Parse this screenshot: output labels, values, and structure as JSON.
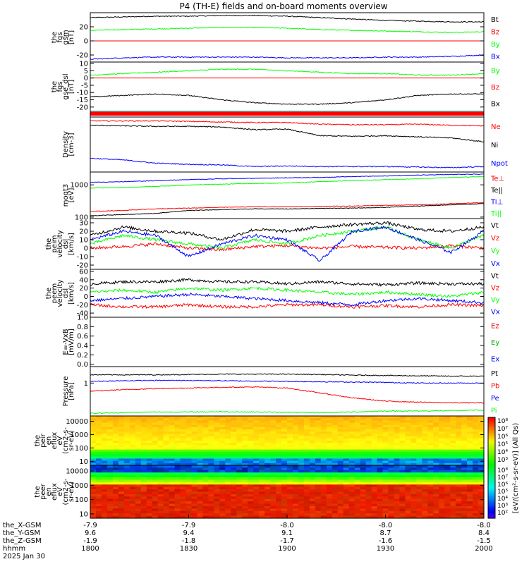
{
  "title": "P4 (TH-E) fields and on-board moments overview",
  "chart_data": [
    {
      "type": "line",
      "ylabel": [
        "the",
        "fgs",
        "gsm",
        "[nT]"
      ],
      "yticks": [
        "20",
        "0",
        "-20"
      ],
      "ylim": [
        -30,
        40
      ],
      "legend": [
        "Bt",
        "Bz",
        "By",
        "Bx"
      ],
      "series": [
        {
          "name": "Bt",
          "color": "#000000",
          "values": [
            33,
            34,
            35,
            35,
            36,
            36,
            35,
            33,
            31,
            29,
            28,
            27,
            27
          ]
        },
        {
          "name": "Bz",
          "color": "#ff0000",
          "values": [
            0,
            0,
            0,
            0,
            0,
            0,
            0,
            0,
            0,
            0,
            0,
            0,
            0
          ]
        },
        {
          "name": "By",
          "color": "#00ff00",
          "values": [
            15,
            16,
            17,
            18,
            19,
            19,
            18,
            16,
            15,
            14,
            13,
            12,
            13
          ]
        },
        {
          "name": "Bx",
          "color": "#0000ff",
          "values": [
            -26,
            -24,
            -23,
            -23,
            -23,
            -23,
            -24,
            -24,
            -24,
            -23,
            -23,
            -22,
            -20
          ]
        }
      ]
    },
    {
      "type": "line",
      "ylabel": [
        "the",
        "fgs",
        "gse_dsl",
        "[nT]"
      ],
      "yticks": [
        "10",
        "5",
        "0",
        "-5",
        "-10",
        "-15",
        "-20"
      ],
      "ylim": [
        -23,
        11
      ],
      "legend": [
        "By",
        "Bz",
        "Bx"
      ],
      "series": [
        {
          "name": "By",
          "color": "#00ff00",
          "values": [
            2,
            3,
            4,
            5,
            6,
            6,
            5,
            4,
            3,
            3,
            2,
            2,
            3
          ]
        },
        {
          "name": "Bz",
          "color": "#ff0000",
          "values": [
            0,
            0,
            0,
            0,
            0,
            0,
            0,
            0,
            0,
            0,
            0,
            0,
            0
          ]
        },
        {
          "name": "Bx",
          "color": "#000000",
          "values": [
            -13,
            -12,
            -11,
            -12,
            -15,
            -17,
            -18,
            -18,
            -17,
            -15,
            -12,
            -11,
            -11
          ]
        }
      ]
    },
    {
      "type": "line",
      "ylabel": [
        "Density",
        "[cm-3]"
      ],
      "yticks": [],
      "ylim": [
        0,
        10
      ],
      "legend": [
        "Ne",
        "Ni",
        "Npot"
      ],
      "series": [
        {
          "name": "Ne",
          "color": "#ff0000",
          "values": [
            9.3,
            9.3,
            9.3,
            9.2,
            9.1,
            9.0,
            9.0,
            8.7,
            8.6,
            8.6,
            8.7,
            8.5,
            8.4
          ]
        },
        {
          "name": "Ni",
          "color": "#000000",
          "values": [
            8.5,
            8.4,
            8.3,
            8.3,
            8.2,
            7.7,
            7.8,
            6.6,
            6.5,
            6.6,
            6.4,
            6.2,
            5.5
          ]
        },
        {
          "name": "Npot",
          "color": "#0000ff",
          "values": [
            2.5,
            2.2,
            1.6,
            1.4,
            1.3,
            1.0,
            1.1,
            1.0,
            1.0,
            1.0,
            0.9,
            0.8,
            1.0
          ]
        }
      ]
    },
    {
      "type": "line",
      "ylabel": [
        "moqt3",
        "[eV]"
      ],
      "yticks": [
        "1000",
        "100"
      ],
      "ylim": [
        90,
        2500
      ],
      "yscale": "log",
      "legend": [
        "Te⊥",
        "Te||",
        "Ti⊥",
        "Ti||"
      ],
      "series": [
        {
          "name": "Te⊥",
          "color": "#ff0000",
          "values": [
            150,
            160,
            180,
            190,
            200,
            210,
            210,
            215,
            220,
            230,
            240,
            260,
            280
          ]
        },
        {
          "name": "Te||",
          "color": "#000000",
          "values": [
            110,
            120,
            130,
            160,
            170,
            180,
            180,
            185,
            190,
            200,
            220,
            240,
            260
          ]
        },
        {
          "name": "Ti⊥",
          "color": "#0000ff",
          "values": [
            1200,
            1250,
            1350,
            1450,
            1550,
            1600,
            1650,
            1700,
            1800,
            1900,
            2000,
            2100,
            2150
          ]
        },
        {
          "name": "Ti||",
          "color": "#00ff00",
          "values": [
            800,
            820,
            900,
            980,
            1050,
            1100,
            1150,
            1250,
            1350,
            1450,
            1550,
            1700,
            1800
          ]
        }
      ]
    },
    {
      "type": "line",
      "ylabel": [
        "the",
        "peim",
        "velocity",
        "dsl",
        "[km/s]"
      ],
      "yticks": [
        "30",
        "20",
        "10",
        "0",
        "-10",
        "-20"
      ],
      "ylim": [
        -25,
        35
      ],
      "legend": [
        "Vt",
        "Vz",
        "Vy",
        "Vx"
      ],
      "series": [
        {
          "name": "Vt",
          "color": "#000000",
          "values": [
            15,
            25,
            20,
            18,
            10,
            22,
            20,
            25,
            28,
            30,
            22,
            20,
            25
          ]
        },
        {
          "name": "Vz",
          "color": "#ff0000",
          "values": [
            0,
            2,
            5,
            0,
            -2,
            2,
            3,
            0,
            2,
            1,
            0,
            3,
            0
          ]
        },
        {
          "name": "Vy",
          "color": "#00ff00",
          "values": [
            5,
            15,
            10,
            5,
            0,
            10,
            5,
            15,
            20,
            25,
            10,
            0,
            15
          ]
        },
        {
          "name": "Vx",
          "color": "#0000ff",
          "values": [
            10,
            20,
            15,
            -10,
            5,
            15,
            10,
            -15,
            20,
            25,
            10,
            -5,
            20
          ]
        }
      ]
    },
    {
      "type": "line",
      "ylabel": [
        "the",
        "peem",
        "velocity",
        "dsl",
        "[km/s]"
      ],
      "yticks": [
        "60",
        "40",
        "20",
        "0",
        "-20",
        "-40"
      ],
      "ylim": [
        -50,
        65
      ],
      "legend": [
        "Vt",
        "Vz",
        "Vy",
        "Vx"
      ],
      "series": [
        {
          "name": "Vt",
          "color": "#000000",
          "values": [
            30,
            35,
            35,
            40,
            35,
            35,
            30,
            35,
            30,
            28,
            32,
            30,
            30
          ]
        },
        {
          "name": "Vz",
          "color": "#ff0000",
          "values": [
            -20,
            -25,
            -25,
            -20,
            -25,
            -25,
            -20,
            -20,
            -25,
            -22,
            -25,
            -20,
            -22
          ]
        },
        {
          "name": "Vy",
          "color": "#00ff00",
          "values": [
            10,
            15,
            10,
            20,
            15,
            20,
            15,
            10,
            5,
            10,
            5,
            0,
            10
          ]
        },
        {
          "name": "Vx",
          "color": "#0000ff",
          "values": [
            -10,
            -5,
            0,
            5,
            0,
            -5,
            -10,
            -15,
            -20,
            -10,
            -5,
            -10,
            -15
          ]
        }
      ]
    },
    {
      "type": "line",
      "ylabel": [
        "E=-VxB",
        "[mV/m]"
      ],
      "yticks": [
        "1.0",
        "0.8",
        "0.6",
        "0.4",
        "0.2",
        "0.0"
      ],
      "ylim": [
        -0.05,
        1.0
      ],
      "legend": [
        "Ez",
        "Ey",
        "Ex"
      ],
      "series": []
    },
    {
      "type": "line",
      "ylabel": [
        "Pressure",
        "[nPa]"
      ],
      "yticks": [
        "1"
      ],
      "ylim": [
        0,
        1.5
      ],
      "legend": [
        "Pt",
        "Pb",
        "Pe",
        "Pi"
      ],
      "series": [
        {
          "name": "Pt",
          "color": "#000000",
          "values": [
            1.25,
            1.25,
            1.25,
            1.26,
            1.27,
            1.27,
            1.27,
            1.26,
            1.24,
            1.23,
            1.22,
            1.21,
            1.21
          ]
        },
        {
          "name": "Pb",
          "color": "#ff0000",
          "values": [
            0.75,
            0.8,
            0.83,
            0.85,
            0.87,
            0.88,
            0.85,
            0.7,
            0.55,
            0.45,
            0.42,
            0.4,
            0.4
          ]
        },
        {
          "name": "Pe",
          "color": "#0000ff",
          "values": [
            1.05,
            1.07,
            1.08,
            1.08,
            1.07,
            1.06,
            1.05,
            1.04,
            1.03,
            1.02,
            1.0,
            1.0,
            1.0
          ]
        },
        {
          "name": "Pi",
          "color": "#00ff00",
          "values": [
            0.08,
            0.1,
            0.12,
            0.12,
            0.13,
            0.12,
            0.11,
            0.1,
            0.12,
            0.15,
            0.15,
            0.16,
            0.18
          ]
        }
      ]
    },
    {
      "type": "heatmap",
      "ylabel": [
        "the",
        "peir",
        "en",
        "eflux",
        "eV",
        "(cm2-s-",
        "sr-eV)"
      ],
      "yticks": [
        "10000",
        "1000",
        "100",
        "10"
      ],
      "ylim": [
        5,
        25000
      ],
      "yscale": "log"
    },
    {
      "type": "heatmap",
      "ylabel": [
        "the",
        "peer",
        "en",
        "eflux",
        "eV",
        "(cm2-s-",
        "sr-eV)"
      ],
      "yticks": [
        "10000",
        "1000",
        "100",
        "10"
      ],
      "ylim": [
        5,
        25000
      ],
      "yscale": "log"
    }
  ],
  "colorbar": {
    "ticks_top": [
      "10⁸",
      "10⁷",
      "10⁶",
      "10⁵",
      "10⁴",
      "10³"
    ],
    "ticks_bottom": [
      "10⁸",
      "10⁷",
      "10⁶",
      "10⁵",
      "10⁴",
      "10³",
      "10²"
    ],
    "label": "[eV/(cm²-s-sr-eV)] (All Qs)"
  },
  "xaxis": {
    "rows": [
      {
        "label": "the_X-GSM",
        "values": [
          "-7.9",
          "-7.9",
          "-8.0",
          "-8.0",
          "-8.0"
        ]
      },
      {
        "label": "the_Y-GSM",
        "values": [
          "9.6",
          "9.4",
          "9.1",
          "8.7",
          "8.4"
        ]
      },
      {
        "label": "the_Z-GSM",
        "values": [
          "-1.9",
          "-1.8",
          "-1.7",
          "-1.6",
          "-1.5"
        ]
      },
      {
        "label": "hhmm",
        "values": [
          "1800",
          "1830",
          "1900",
          "1930",
          "2000"
        ]
      }
    ],
    "date": "2025 Jan 30"
  }
}
